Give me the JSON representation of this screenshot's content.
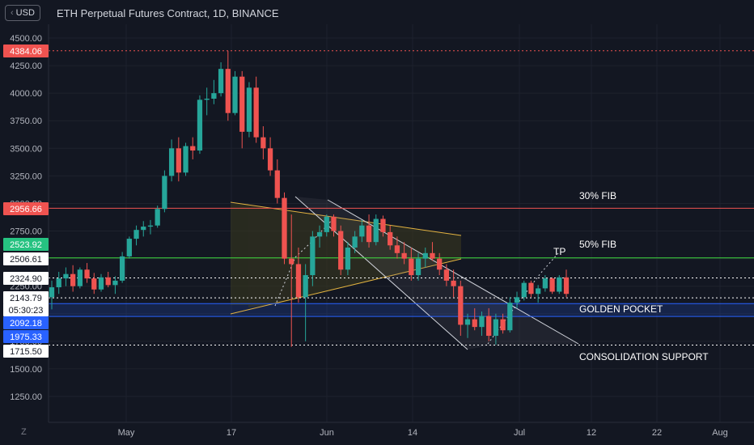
{
  "header": {
    "currency": "USD",
    "currency_icon": "chevron-left-icon",
    "title": "ETH Perpetual Futures Contract, 1D, BINANCE"
  },
  "footer": {
    "zoom_label": "Z"
  },
  "chart_data": {
    "type": "candlestick",
    "title": "ETH Perpetual Futures Contract, 1D, BINANCE",
    "xlabel": "",
    "ylabel": "",
    "x_ticks": [
      "May",
      "17",
      "Jun",
      "14",
      "Jul",
      "12",
      "22",
      "Aug"
    ],
    "y_ticks": [
      1250,
      1500,
      1750,
      2000,
      2250,
      2500,
      2750,
      3000,
      3250,
      3500,
      3750,
      4000,
      4250,
      4500
    ],
    "ylim": [
      1000,
      4600
    ],
    "grid": true,
    "colors": {
      "up": "#26a69a",
      "down": "#ef5350",
      "background": "#131722",
      "grid": "#1e222d"
    },
    "candles_sampled": [
      {
        "o": 2150,
        "h": 2300,
        "l": 2040,
        "c": 2240
      },
      {
        "o": 2240,
        "h": 2380,
        "l": 2180,
        "c": 2320
      },
      {
        "o": 2320,
        "h": 2420,
        "l": 2250,
        "c": 2360
      },
      {
        "o": 2360,
        "h": 2440,
        "l": 2200,
        "c": 2250
      },
      {
        "o": 2250,
        "h": 2420,
        "l": 2230,
        "c": 2400
      },
      {
        "o": 2400,
        "h": 2460,
        "l": 2280,
        "c": 2320
      },
      {
        "o": 2320,
        "h": 2370,
        "l": 2180,
        "c": 2220
      },
      {
        "o": 2220,
        "h": 2360,
        "l": 2200,
        "c": 2330
      },
      {
        "o": 2330,
        "h": 2380,
        "l": 2240,
        "c": 2260
      },
      {
        "o": 2260,
        "h": 2340,
        "l": 2180,
        "c": 2300
      },
      {
        "o": 2300,
        "h": 2560,
        "l": 2280,
        "c": 2520
      },
      {
        "o": 2520,
        "h": 2700,
        "l": 2500,
        "c": 2680
      },
      {
        "o": 2680,
        "h": 2800,
        "l": 2620,
        "c": 2760
      },
      {
        "o": 2760,
        "h": 2840,
        "l": 2700,
        "c": 2790
      },
      {
        "o": 2790,
        "h": 2850,
        "l": 2720,
        "c": 2800
      },
      {
        "o": 2800,
        "h": 2980,
        "l": 2780,
        "c": 2950
      },
      {
        "o": 2950,
        "h": 3300,
        "l": 2920,
        "c": 3250
      },
      {
        "o": 3250,
        "h": 3580,
        "l": 3200,
        "c": 3500
      },
      {
        "o": 3500,
        "h": 3600,
        "l": 3200,
        "c": 3280
      },
      {
        "o": 3280,
        "h": 3550,
        "l": 3250,
        "c": 3520
      },
      {
        "o": 3520,
        "h": 3600,
        "l": 3400,
        "c": 3480
      },
      {
        "o": 3480,
        "h": 3980,
        "l": 3450,
        "c": 3940
      },
      {
        "o": 3940,
        "h": 4050,
        "l": 3800,
        "c": 3950
      },
      {
        "o": 3950,
        "h": 4120,
        "l": 3900,
        "c": 4000
      },
      {
        "o": 4000,
        "h": 4280,
        "l": 3970,
        "c": 4220
      },
      {
        "o": 4220,
        "h": 4384,
        "l": 3750,
        "c": 3820
      },
      {
        "o": 3820,
        "h": 4200,
        "l": 3800,
        "c": 4150
      },
      {
        "o": 4150,
        "h": 4200,
        "l": 3500,
        "c": 3650
      },
      {
        "o": 3650,
        "h": 4100,
        "l": 3600,
        "c": 4050
      },
      {
        "o": 4050,
        "h": 4150,
        "l": 3550,
        "c": 3600
      },
      {
        "o": 3600,
        "h": 3700,
        "l": 3400,
        "c": 3500
      },
      {
        "o": 3500,
        "h": 3600,
        "l": 3250,
        "c": 3300
      },
      {
        "o": 3300,
        "h": 3400,
        "l": 3000,
        "c": 3050
      },
      {
        "o": 3050,
        "h": 3100,
        "l": 2450,
        "c": 2500
      },
      {
        "o": 2500,
        "h": 2900,
        "l": 1700,
        "c": 2450
      },
      {
        "o": 2450,
        "h": 2600,
        "l": 2100,
        "c": 2150
      },
      {
        "o": 2150,
        "h": 2450,
        "l": 1750,
        "c": 2350
      },
      {
        "o": 2350,
        "h": 2750,
        "l": 2250,
        "c": 2700
      },
      {
        "o": 2700,
        "h": 2800,
        "l": 2600,
        "c": 2740
      },
      {
        "o": 2740,
        "h": 2900,
        "l": 2700,
        "c": 2880
      },
      {
        "o": 2880,
        "h": 2900,
        "l": 2700,
        "c": 2750
      },
      {
        "o": 2750,
        "h": 2800,
        "l": 2350,
        "c": 2400
      },
      {
        "o": 2400,
        "h": 2650,
        "l": 2350,
        "c": 2600
      },
      {
        "o": 2600,
        "h": 2750,
        "l": 2550,
        "c": 2700
      },
      {
        "o": 2700,
        "h": 2850,
        "l": 2650,
        "c": 2800
      },
      {
        "o": 2800,
        "h": 2900,
        "l": 2600,
        "c": 2650
      },
      {
        "o": 2650,
        "h": 2900,
        "l": 2620,
        "c": 2860
      },
      {
        "o": 2860,
        "h": 2890,
        "l": 2700,
        "c": 2740
      },
      {
        "o": 2740,
        "h": 2800,
        "l": 2580,
        "c": 2620
      },
      {
        "o": 2620,
        "h": 2700,
        "l": 2500,
        "c": 2550
      },
      {
        "o": 2550,
        "h": 2650,
        "l": 2450,
        "c": 2500
      },
      {
        "o": 2500,
        "h": 2600,
        "l": 2300,
        "c": 2350
      },
      {
        "o": 2350,
        "h": 2550,
        "l": 2300,
        "c": 2500
      },
      {
        "o": 2500,
        "h": 2600,
        "l": 2420,
        "c": 2550
      },
      {
        "o": 2550,
        "h": 2650,
        "l": 2480,
        "c": 2500
      },
      {
        "o": 2500,
        "h": 2550,
        "l": 2350,
        "c": 2400
      },
      {
        "o": 2400,
        "h": 2450,
        "l": 2250,
        "c": 2300
      },
      {
        "o": 2300,
        "h": 2400,
        "l": 2150,
        "c": 2250
      },
      {
        "o": 2250,
        "h": 2300,
        "l": 1800,
        "c": 1900
      },
      {
        "o": 1900,
        "h": 2000,
        "l": 1780,
        "c": 1950
      },
      {
        "o": 1950,
        "h": 2050,
        "l": 1850,
        "c": 1880
      },
      {
        "o": 1880,
        "h": 2020,
        "l": 1800,
        "c": 1980
      },
      {
        "o": 1980,
        "h": 2050,
        "l": 1750,
        "c": 1800
      },
      {
        "o": 1800,
        "h": 2000,
        "l": 1720,
        "c": 1950
      },
      {
        "o": 1950,
        "h": 2000,
        "l": 1820,
        "c": 1850
      },
      {
        "o": 1850,
        "h": 2150,
        "l": 1830,
        "c": 2100
      },
      {
        "o": 2100,
        "h": 2200,
        "l": 2050,
        "c": 2150
      },
      {
        "o": 2150,
        "h": 2300,
        "l": 2120,
        "c": 2280
      },
      {
        "o": 2280,
        "h": 2300,
        "l": 2150,
        "c": 2180
      },
      {
        "o": 2180,
        "h": 2260,
        "l": 2100,
        "c": 2230
      },
      {
        "o": 2230,
        "h": 2350,
        "l": 2200,
        "c": 2320
      },
      {
        "o": 2320,
        "h": 2330,
        "l": 2180,
        "c": 2200
      },
      {
        "o": 2200,
        "h": 2350,
        "l": 2180,
        "c": 2330
      },
      {
        "o": 2330,
        "h": 2400,
        "l": 2150,
        "c": 2180
      }
    ],
    "price_tags": [
      {
        "label": "4384.06",
        "value": 4384.06,
        "color": "#ef5350"
      },
      {
        "label": "2956.66",
        "value": 2956.66,
        "color": "#ef5350"
      },
      {
        "label": "2523.92",
        "value": 2523.92,
        "color": "#26c281"
      },
      {
        "label": "2506.61",
        "value": 2506.61,
        "color": "#ffffff"
      },
      {
        "label": "2324.90",
        "value": 2324.9,
        "color": "#ffffff"
      },
      {
        "label": "2143.79",
        "value": 2143.79,
        "color": "#ffffff"
      },
      {
        "label": "05:30:23",
        "value": 2090,
        "color": "#ffffff"
      },
      {
        "label": "2092.18",
        "value": 2092.18,
        "color": "#2962ff"
      },
      {
        "label": "1975.33",
        "value": 1975.33,
        "color": "#2962ff"
      },
      {
        "label": "1715.50",
        "value": 1715.5,
        "color": "#ffffff"
      }
    ],
    "horizontal_levels": [
      {
        "value": 4384.06,
        "color": "#ef5350",
        "style": "dotted"
      },
      {
        "value": 2956.66,
        "color": "#ef5350",
        "style": "solid"
      },
      {
        "value": 2506.61,
        "color": "#3fdc3f",
        "style": "solid"
      },
      {
        "value": 2324.9,
        "color": "#ffffff",
        "style": "dotted"
      },
      {
        "value": 2143.79,
        "color": "#ffffff",
        "style": "dotted"
      },
      {
        "value": 2092.18,
        "color": "#2962ff",
        "style": "solid"
      },
      {
        "value": 1975.33,
        "color": "#2962ff",
        "style": "solid"
      },
      {
        "value": 1715.5,
        "color": "#ffffff",
        "style": "dotted"
      }
    ],
    "annotations": [
      {
        "text": "30% FIB"
      },
      {
        "text": "50% FIB"
      },
      {
        "text": "TP"
      },
      {
        "text": "GOLDEN POCKET"
      },
      {
        "text": "CONSOLIDATION SUPPORT"
      }
    ]
  }
}
